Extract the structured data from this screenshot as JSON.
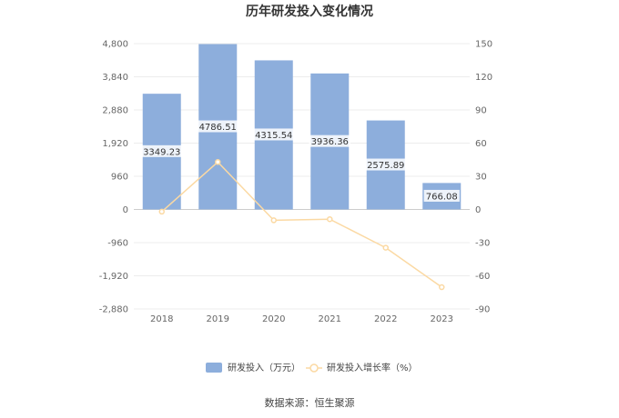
{
  "chart_data": {
    "type": "bar",
    "title": "历年研发投入变化情况",
    "categories": [
      "2018",
      "2019",
      "2020",
      "2021",
      "2022",
      "2023"
    ],
    "series": [
      {
        "name": "研发投入（万元）",
        "type": "bar",
        "axis": "left",
        "color": "#8daedc",
        "values": [
          3349.23,
          4786.51,
          4315.54,
          3936.36,
          2575.89,
          766.08
        ],
        "labels": [
          "3349.23",
          "4786.51",
          "4315.54",
          "3936.36",
          "2575.89",
          "766.08"
        ]
      },
      {
        "name": "研发投入增长率（%）",
        "type": "line",
        "axis": "right",
        "color": "#fbd9a3",
        "values": [
          -2.0,
          42.9,
          -9.8,
          -8.8,
          -34.6,
          -70.3
        ]
      }
    ],
    "y_left": {
      "ylim": [
        -2880,
        4800
      ],
      "ticks": [
        4800,
        3840,
        2880,
        1920,
        960,
        0,
        -960,
        -1920,
        -2880
      ],
      "tick_labels": [
        "4,800",
        "3,840",
        "2,880",
        "1,920",
        "960",
        "0",
        "-960",
        "-1,920",
        "-2,880"
      ]
    },
    "y_right": {
      "ylim": [
        -90,
        150
      ],
      "ticks": [
        150,
        120,
        90,
        60,
        30,
        0,
        -30,
        -60,
        -90
      ],
      "tick_labels": [
        "150",
        "120",
        "90",
        "60",
        "30",
        "0",
        "-30",
        "-60",
        "-90"
      ]
    },
    "grid": true,
    "legend_position": "bottom",
    "source": "数据来源：恒生聚源"
  }
}
